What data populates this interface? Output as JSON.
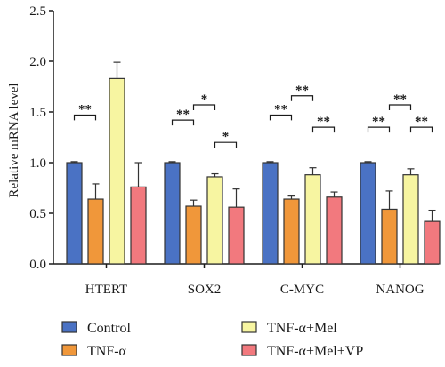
{
  "chart_data": {
    "type": "bar",
    "title": "",
    "xlabel": "",
    "ylabel": "Relative mRNA level",
    "ylim": [
      0,
      2.5
    ],
    "yticks": [
      "0.0",
      "0.5",
      "1.0",
      "1.5",
      "2.0",
      "2.5"
    ],
    "categories": [
      "HTERT",
      "SOX2",
      "C-MYC",
      "NANOG"
    ],
    "series": [
      {
        "name": "Control",
        "color": "#4a72c4",
        "values": [
          1.0,
          1.0,
          1.0,
          1.0
        ],
        "errors": [
          0.01,
          0.01,
          0.01,
          0.01
        ]
      },
      {
        "name": "TNF-α",
        "color": "#f0973a",
        "values": [
          0.64,
          0.57,
          0.64,
          0.54
        ],
        "errors": [
          0.15,
          0.06,
          0.03,
          0.18
        ]
      },
      {
        "name": "TNF-α+Mel",
        "color": "#f7f5a1",
        "values": [
          1.83,
          0.86,
          0.88,
          0.88
        ],
        "errors": [
          0.16,
          0.03,
          0.07,
          0.06
        ]
      },
      {
        "name": "TNF-α+Mel+VP",
        "color": "#f2797e",
        "values": [
          0.76,
          0.56,
          0.66,
          0.42
        ],
        "errors": [
          0.24,
          0.18,
          0.05,
          0.11
        ]
      }
    ],
    "significance": [
      {
        "category": 0,
        "from": 0,
        "to": 1,
        "y": 1.47,
        "label": "**"
      },
      {
        "category": 0,
        "from": 1,
        "to": 2,
        "y": 2.72,
        "label": "**"
      },
      {
        "category": 0,
        "from": 2,
        "to": 3,
        "y": 2.72,
        "label": "**"
      },
      {
        "category": 1,
        "from": 0,
        "to": 1,
        "y": 1.42,
        "label": "**"
      },
      {
        "category": 1,
        "from": 1,
        "to": 2,
        "y": 1.57,
        "label": "*"
      },
      {
        "category": 1,
        "from": 2,
        "to": 3,
        "y": 1.2,
        "label": "*"
      },
      {
        "category": 2,
        "from": 0,
        "to": 1,
        "y": 1.47,
        "label": "**"
      },
      {
        "category": 2,
        "from": 1,
        "to": 2,
        "y": 1.66,
        "label": "**"
      },
      {
        "category": 2,
        "from": 2,
        "to": 3,
        "y": 1.35,
        "label": "**"
      },
      {
        "category": 3,
        "from": 0,
        "to": 1,
        "y": 1.35,
        "label": "**"
      },
      {
        "category": 3,
        "from": 1,
        "to": 2,
        "y": 1.57,
        "label": "**"
      },
      {
        "category": 3,
        "from": 2,
        "to": 3,
        "y": 1.35,
        "label": "**"
      }
    ],
    "legend_position": "bottom",
    "grid": false
  }
}
